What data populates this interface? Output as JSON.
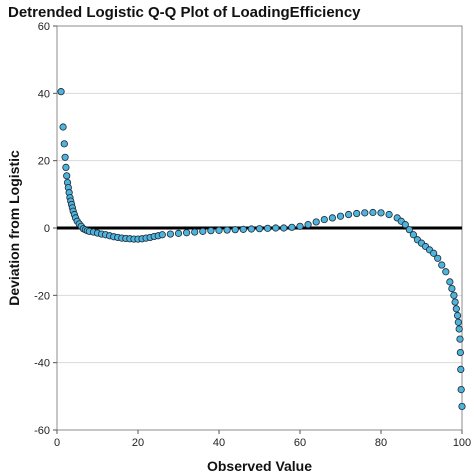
{
  "chart_data": {
    "type": "scatter",
    "title": "Detrended Logistic Q-Q Plot of LoadingEfficiency",
    "xlabel": "Observed Value",
    "ylabel": "Deviation from Logistic",
    "xlim": [
      0,
      100
    ],
    "ylim": [
      -60,
      60
    ],
    "xticks": [
      "0",
      "20",
      "40",
      "60",
      "80",
      "100"
    ],
    "yticks": [
      "60",
      "40",
      "20",
      "0",
      "-20",
      "-40",
      "-60"
    ],
    "grid": "horizontal",
    "reference_line_y": 0,
    "colors": {
      "marker_fill": "#4fb3dc",
      "marker_edge": "#1c2a36",
      "reference_line": "#000000",
      "gridline": "#d9d9d9"
    },
    "series": [
      {
        "x": [
          1.0,
          1.5,
          1.8,
          2.0,
          2.2,
          2.4,
          2.6,
          2.8,
          3.0,
          3.2,
          3.4,
          3.6,
          3.8,
          4.0,
          4.3,
          4.6,
          5.0,
          5.5,
          6.0,
          6.5,
          7.0,
          7.5,
          8.0,
          9.0,
          10.0,
          11.0,
          12.0,
          13.0,
          14.0,
          15.0,
          16.0,
          17.0,
          18.0,
          19.0,
          20.0,
          21.0,
          22.0,
          23.0,
          24.0,
          25.0,
          26.0,
          28.0,
          30.0,
          32.0,
          34.0,
          36.0,
          38.0,
          40.0,
          42.0,
          44.0,
          46.0,
          48.0,
          50.0,
          52.0,
          54.0,
          56.0,
          58.0,
          60.0,
          62.0,
          64.0,
          66.0,
          68.0,
          70.0,
          72.0,
          74.0,
          76.0,
          78.0,
          80.0,
          82.0,
          84.0,
          85.0,
          86.0,
          87.0,
          88.0,
          89.0,
          90.0,
          91.0,
          92.0,
          93.0,
          94.0,
          95.0,
          96.0,
          97.0,
          97.5,
          98.0,
          98.3,
          98.6,
          98.9,
          99.1,
          99.3,
          99.5,
          99.6,
          99.7,
          99.8,
          100.0
        ],
        "y": [
          40.5,
          30.0,
          25.0,
          21.0,
          18.0,
          15.5,
          13.5,
          12.0,
          10.5,
          9.0,
          8.0,
          7.0,
          6.0,
          5.0,
          4.0,
          3.0,
          2.0,
          1.2,
          0.5,
          -0.2,
          -0.5,
          -0.8,
          -1.0,
          -1.2,
          -1.5,
          -1.8,
          -2.0,
          -2.3,
          -2.6,
          -2.8,
          -3.0,
          -3.1,
          -3.2,
          -3.3,
          -3.3,
          -3.2,
          -3.0,
          -2.8,
          -2.5,
          -2.3,
          -2.0,
          -1.8,
          -1.6,
          -1.4,
          -1.2,
          -1.0,
          -0.8,
          -0.7,
          -0.6,
          -0.5,
          -0.4,
          -0.3,
          -0.2,
          -0.1,
          0.0,
          0.0,
          0.2,
          0.5,
          1.0,
          1.8,
          2.5,
          3.0,
          3.5,
          4.0,
          4.3,
          4.5,
          4.6,
          4.5,
          4.0,
          3.0,
          2.0,
          1.0,
          -0.5,
          -2.0,
          -3.5,
          -4.5,
          -5.5,
          -6.5,
          -7.5,
          -9.0,
          -11.0,
          -13.0,
          -16.0,
          -18.0,
          -20.0,
          -22.0,
          -24.0,
          -26.0,
          -28.0,
          -30.0,
          -33.0,
          -37.0,
          -42.0,
          -48.0,
          -53.0
        ]
      }
    ]
  }
}
